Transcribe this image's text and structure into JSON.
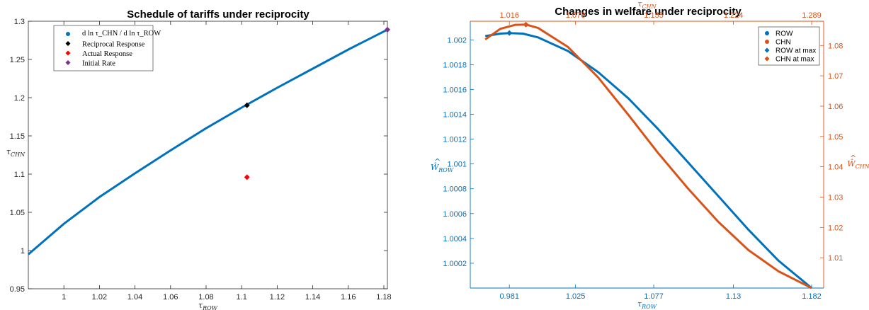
{
  "chart_data": [
    {
      "type": "line",
      "title": "Schedule of tariffs under reciprocity",
      "xlabel": "τ_ROW",
      "ylabel": "τ_CHN",
      "xlim": [
        0.98,
        1.182
      ],
      "ylim": [
        0.95,
        1.3
      ],
      "xticks": [
        "1",
        "1.02",
        "1.04",
        "1.06",
        "1.08",
        "1.1",
        "1.12",
        "1.14",
        "1.16",
        "1.18"
      ],
      "yticks": [
        "0.95",
        "1",
        "1.05",
        "1.1",
        "1.15",
        "1.2",
        "1.25",
        "1.3"
      ],
      "grid": false,
      "legend_position": "top-left",
      "legend": [
        {
          "label": "d ln τ_CHN / d ln τ_ROW",
          "color": "#0072BD",
          "marker": "circle"
        },
        {
          "label": "Reciprocal Response",
          "color": "#000000",
          "marker": "diamond"
        },
        {
          "label": "Actual Response",
          "color": "#FF0000",
          "marker": "diamond"
        },
        {
          "label": "Initial Rate",
          "color": "#7E2F8E",
          "marker": "diamond"
        }
      ],
      "series": [
        {
          "color": "#0072BD",
          "x": [
            0.98,
            1.0,
            1.02,
            1.04,
            1.06,
            1.08,
            1.1,
            1.12,
            1.14,
            1.16,
            1.182
          ],
          "y": [
            0.995,
            1.035,
            1.07,
            1.101,
            1.131,
            1.16,
            1.187,
            1.213,
            1.238,
            1.263,
            1.289
          ]
        }
      ],
      "points": [
        {
          "name": "Reciprocal Response",
          "x": 1.103,
          "y": 1.19,
          "color": "#000000"
        },
        {
          "name": "Actual Response",
          "x": 1.103,
          "y": 1.096,
          "color": "#FF0000"
        },
        {
          "name": "Initial Rate",
          "x": 1.182,
          "y": 1.289,
          "color": "#7E2F8E"
        }
      ]
    },
    {
      "type": "line",
      "title": "Changes in welfare under reciprocity",
      "xlabel": "τ_ROW",
      "x2label": "τ_CHN",
      "ylabel": "Ŵ_ROW",
      "y2label": "Ŵ_CHN",
      "xlim": [
        0.955,
        1.19
      ],
      "ylim": [
        1.0,
        1.00215
      ],
      "y2lim": [
        1.0,
        1.088
      ],
      "xticks": [
        "0.981",
        "1.025",
        "1.077",
        "1.13",
        "1.182"
      ],
      "xticks_pos": [
        0.981,
        1.025,
        1.077,
        1.13,
        1.182
      ],
      "x2ticks": [
        "1.016",
        "1.076",
        "1.155",
        "1.224",
        "1.289"
      ],
      "yticks": [
        "1.0002",
        "1.0004",
        "1.0006",
        "1.0008",
        "1.001",
        "1.0012",
        "1.0014",
        "1.0016",
        "1.0018",
        "1.002"
      ],
      "y2ticks": [
        "1.01",
        "1.02",
        "1.03",
        "1.04",
        "1.05",
        "1.06",
        "1.07",
        "1.08"
      ],
      "grid": false,
      "legend_position": "top-right",
      "legend": [
        {
          "label": "ROW",
          "color": "#0072BD",
          "marker": "circle"
        },
        {
          "label": "CHN",
          "color": "#D95319",
          "marker": "circle"
        },
        {
          "label": "ROW at max",
          "color": "#0072BD",
          "marker": "diamond"
        },
        {
          "label": "CHN at max",
          "color": "#D95319",
          "marker": "diamond"
        }
      ],
      "series": [
        {
          "name": "ROW",
          "axis": "left",
          "color": "#0072BD",
          "x": [
            0.965,
            0.975,
            0.981,
            0.99,
            1.0,
            1.02,
            1.04,
            1.06,
            1.08,
            1.1,
            1.12,
            1.14,
            1.16,
            1.182
          ],
          "y": [
            1.00203,
            1.00205,
            1.002055,
            1.00205,
            1.00202,
            1.00191,
            1.00174,
            1.00153,
            1.00128,
            1.00101,
            1.00074,
            1.00047,
            1.00022,
            1.0
          ]
        },
        {
          "name": "CHN",
          "axis": "right",
          "color": "#D95319",
          "x": [
            0.965,
            0.975,
            0.985,
            0.992,
            1.0,
            1.02,
            1.04,
            1.06,
            1.08,
            1.1,
            1.12,
            1.14,
            1.16,
            1.182
          ],
          "y": [
            1.082,
            1.0855,
            1.0868,
            1.0869,
            1.0858,
            1.0795,
            1.0695,
            1.0572,
            1.0445,
            1.0327,
            1.0218,
            1.0125,
            1.0055,
            1.0
          ]
        }
      ],
      "points": [
        {
          "name": "ROW at max",
          "axis": "left",
          "x": 0.981,
          "y": 1.002055,
          "color": "#0072BD"
        },
        {
          "name": "CHN at max",
          "axis": "right",
          "x": 0.992,
          "y": 1.0869,
          "color": "#D95319"
        }
      ]
    }
  ]
}
